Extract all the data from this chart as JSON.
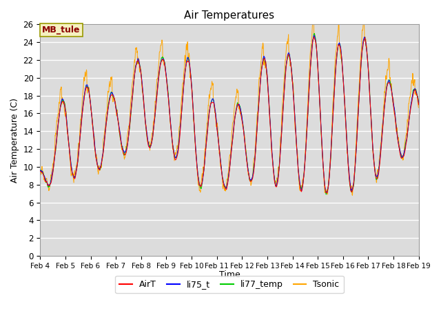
{
  "title": "Air Temperatures",
  "ylabel": "Air Temperature (C)",
  "xlabel": "Time",
  "annotation": "MB_tule",
  "ylim": [
    0,
    26
  ],
  "yticks": [
    0,
    2,
    4,
    6,
    8,
    10,
    12,
    14,
    16,
    18,
    20,
    22,
    24,
    26
  ],
  "xtick_labels": [
    "Feb 4",
    "Feb 5",
    "Feb 6",
    "Feb 7",
    "Feb 8",
    "Feb 9",
    "Feb 10",
    "Feb 11",
    "Feb 12",
    "Feb 13",
    "Feb 14",
    "Feb 15",
    "Feb 16",
    "Feb 17",
    "Feb 18",
    "Feb 19"
  ],
  "colors": {
    "AirT": "#ff0000",
    "li75_t": "#0000ff",
    "li77_temp": "#00cc00",
    "Tsonic": "#ffa500"
  },
  "plot_bg": "#dcdcdc",
  "fig_bg": "#ffffff",
  "n_days": 15,
  "pts_per_day": 96,
  "daily_min_base": 8.5,
  "daily_range_base": 9.0,
  "tsonic_extra_noise": 1.8
}
